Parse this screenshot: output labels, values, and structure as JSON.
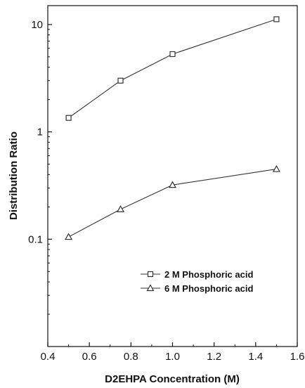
{
  "chart_data": {
    "type": "line",
    "title": "",
    "xlabel": "D2EHPA Concentration (M)",
    "ylabel": "Distribution Ratio",
    "xlim": [
      0.4,
      1.6
    ],
    "ylim": [
      0.01,
      15
    ],
    "yscale": "log",
    "grid": false,
    "legend_position": "lower-right",
    "x_ticks": [
      0.4,
      0.6,
      0.8,
      1.0,
      1.2,
      1.4,
      1.6
    ],
    "x_tick_labels": [
      "0.4",
      "0.6",
      "0.8",
      "1.0",
      "1.2",
      "1.4",
      "1.6"
    ],
    "y_ticks": [
      0.1,
      1,
      10
    ],
    "y_tick_labels": [
      "0.1",
      "1",
      "10"
    ],
    "series": [
      {
        "name": "2 M Phosphoric acid",
        "marker": "square",
        "color": "#333333",
        "x": [
          0.5,
          0.75,
          1.0,
          1.5
        ],
        "y": [
          1.35,
          3.0,
          5.3,
          11.2
        ]
      },
      {
        "name": "6 M Phosphoric acid",
        "marker": "triangle",
        "color": "#333333",
        "x": [
          0.5,
          0.75,
          1.0,
          1.5
        ],
        "y": [
          0.105,
          0.19,
          0.32,
          0.45
        ]
      }
    ]
  }
}
